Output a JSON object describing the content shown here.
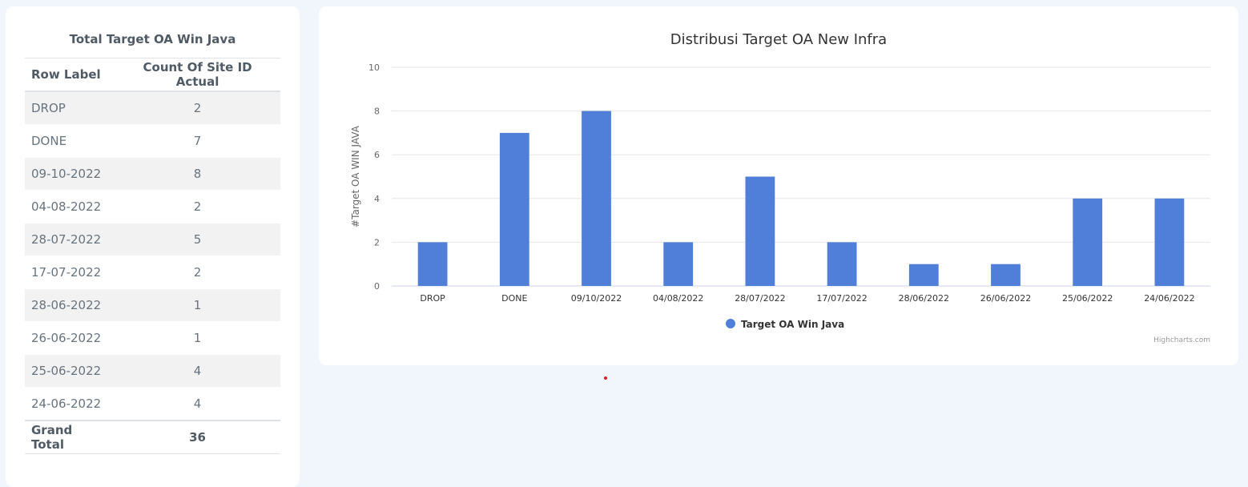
{
  "left_panel": {
    "title": "Total Target OA Win Java",
    "headers": [
      "Row Label",
      "Count Of Site ID Actual"
    ],
    "rows": [
      {
        "label": "DROP",
        "count": "2"
      },
      {
        "label": "DONE",
        "count": "7"
      },
      {
        "label": "09-10-2022",
        "count": "8"
      },
      {
        "label": "04-08-2022",
        "count": "2"
      },
      {
        "label": "28-07-2022",
        "count": "5"
      },
      {
        "label": "17-07-2022",
        "count": "2"
      },
      {
        "label": "28-06-2022",
        "count": "1"
      },
      {
        "label": "26-06-2022",
        "count": "1"
      },
      {
        "label": "25-06-2022",
        "count": "4"
      },
      {
        "label": "24-06-2022",
        "count": "4"
      }
    ],
    "total": {
      "label": "Grand Total",
      "count": "36"
    }
  },
  "chart_data": {
    "type": "bar",
    "title": "Distribusi Target OA New Infra",
    "ylabel": "#Target OA WIN JAVA",
    "xlabel": "",
    "categories": [
      "DROP",
      "DONE",
      "09/10/2022",
      "04/08/2022",
      "28/07/2022",
      "17/07/2022",
      "28/06/2022",
      "26/06/2022",
      "25/06/2022",
      "24/06/2022"
    ],
    "series": [
      {
        "name": "Target OA Win Java",
        "values": [
          2,
          7,
          8,
          2,
          5,
          2,
          1,
          1,
          4,
          4
        ],
        "color": "#4f7fd8"
      }
    ],
    "ylim": [
      0,
      10
    ],
    "yticks": [
      0,
      2,
      4,
      6,
      8,
      10
    ],
    "grid": true,
    "legend": "bottom-center",
    "credits": "Highcharts.com"
  }
}
